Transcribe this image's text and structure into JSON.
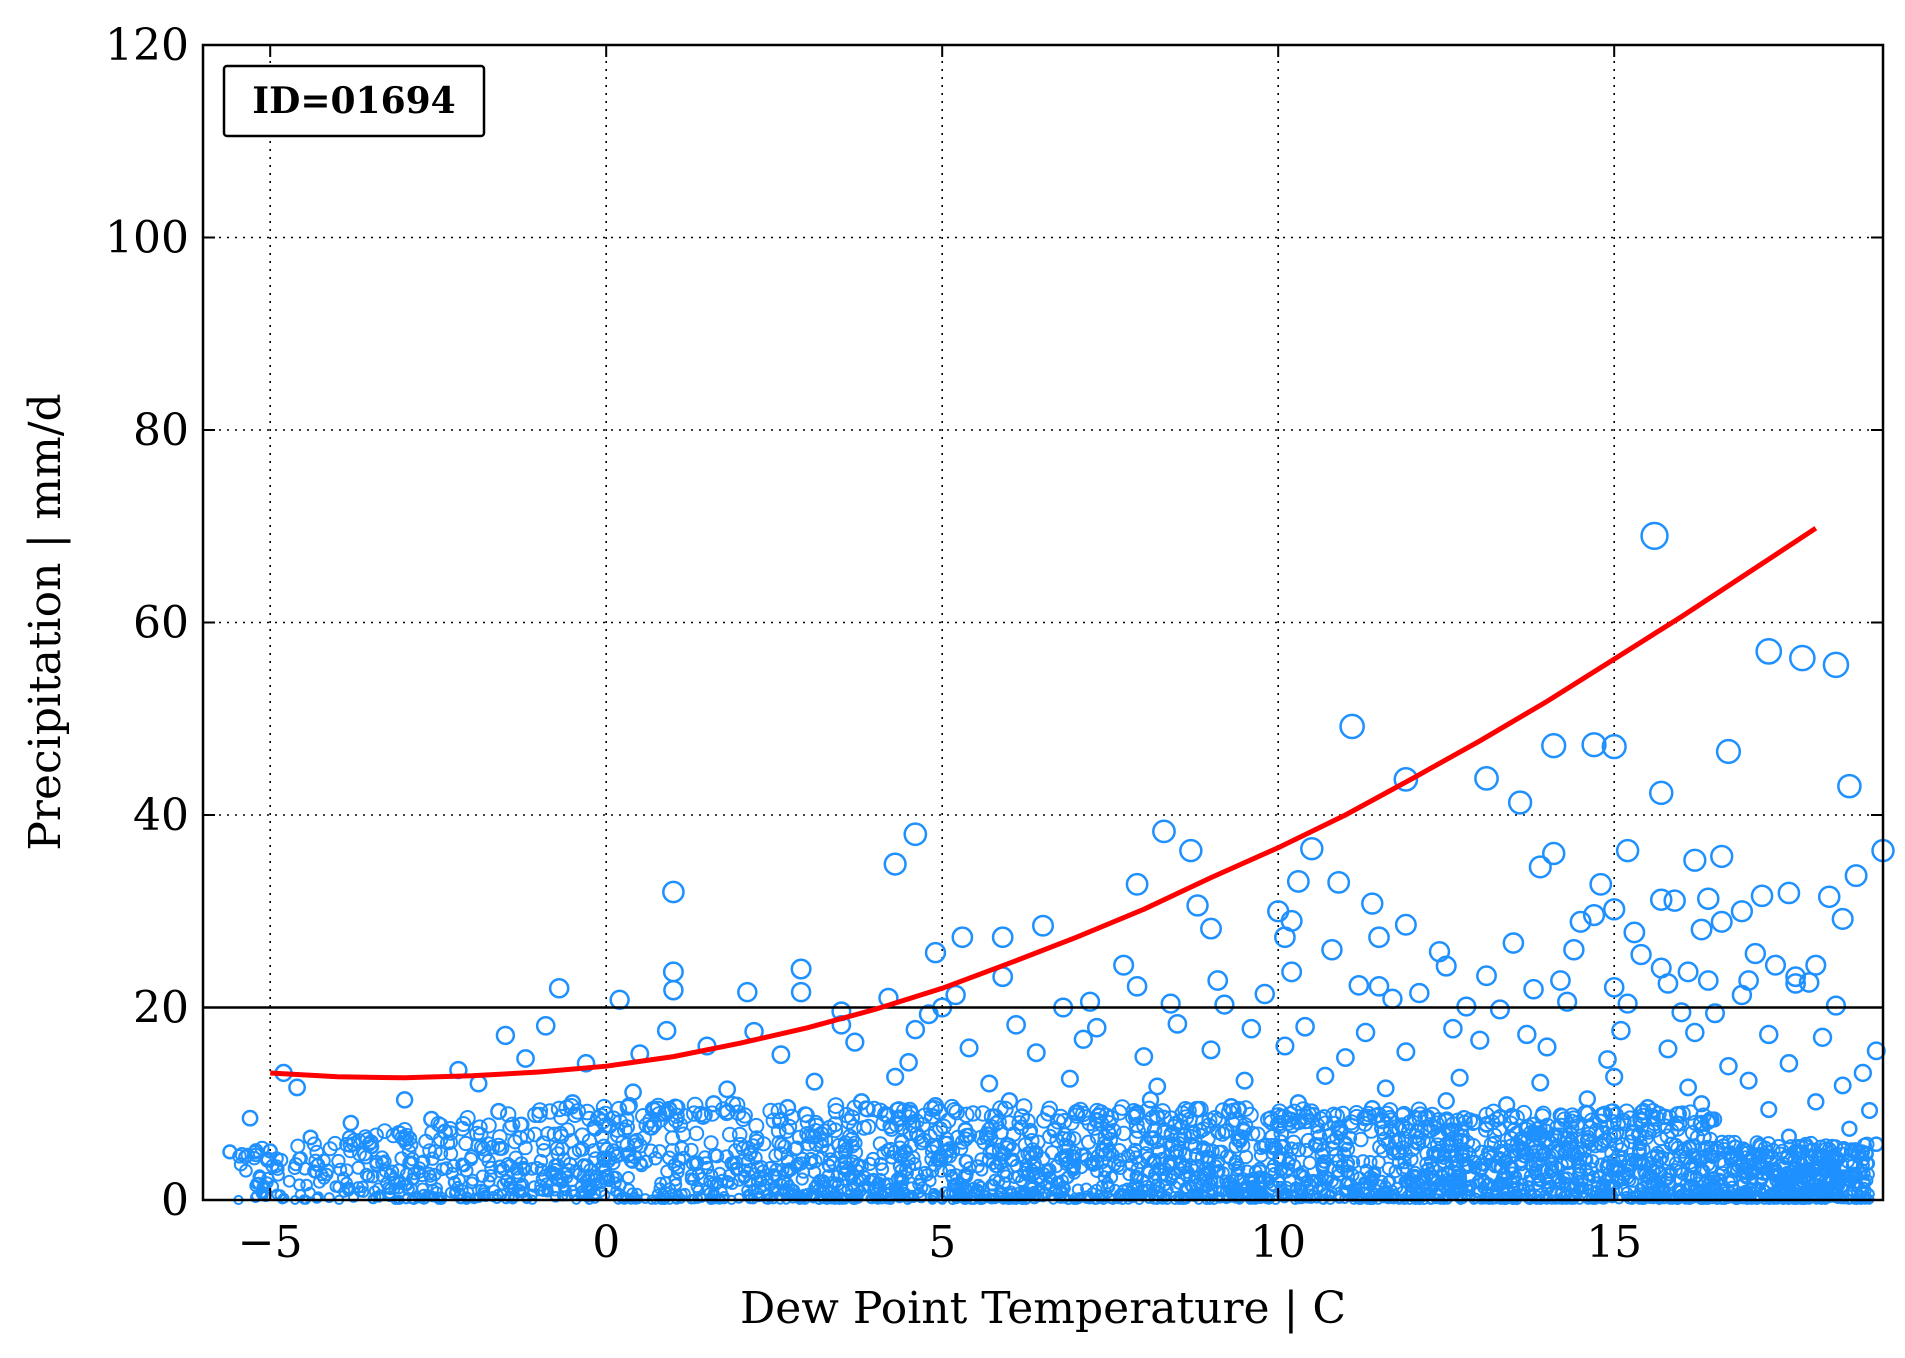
{
  "chart_data": {
    "type": "scatter",
    "annotation": "ID=01694",
    "xlabel": "Dew Point Temperature | C",
    "ylabel": "Precipitation | mm/d",
    "xlim": [
      -6,
      19
    ],
    "ylim": [
      0,
      120
    ],
    "x_ticks": [
      -5,
      0,
      5,
      10,
      15
    ],
    "x_tick_labels": [
      "−5",
      "0",
      "5",
      "10",
      "15"
    ],
    "y_ticks": [
      0,
      20,
      40,
      60,
      80,
      100,
      120
    ],
    "y_tick_labels": [
      "0",
      "20",
      "40",
      "60",
      "80",
      "100",
      "120"
    ],
    "grid": true,
    "reference_line_y": 20,
    "colors": {
      "points": "#1E90FF",
      "fit": "#FF0000",
      "reference": "#000000"
    },
    "fit_curve": {
      "x": [
        -5,
        -4,
        -3,
        -2,
        -1,
        0,
        1,
        2,
        3,
        4,
        5,
        6,
        7,
        8,
        9,
        10,
        11,
        12,
        13,
        14,
        15,
        16,
        17,
        18
      ],
      "y": [
        13.2,
        12.8,
        12.7,
        12.9,
        13.3,
        13.9,
        14.9,
        16.3,
        17.9,
        19.8,
        22.0,
        24.6,
        27.3,
        30.2,
        33.5,
        36.6,
        40.0,
        43.8,
        47.7,
        51.8,
        56.2,
        60.6,
        65.2,
        69.8
      ]
    },
    "points": [
      [
        15.6,
        69
      ],
      [
        17.3,
        57.0
      ],
      [
        17.8,
        56.3
      ],
      [
        18.3,
        55.6
      ],
      [
        11.1,
        49.2
      ],
      [
        14.1,
        47.2
      ],
      [
        14.7,
        47.3
      ],
      [
        15.0,
        47.1
      ],
      [
        16.7,
        46.6
      ],
      [
        18.5,
        43.0
      ],
      [
        11.9,
        43.7
      ],
      [
        13.1,
        43.8
      ],
      [
        13.6,
        41.3
      ],
      [
        15.7,
        42.3
      ],
      [
        4.6,
        38.0
      ],
      [
        4.3,
        34.9
      ],
      [
        8.3,
        38.3
      ],
      [
        8.7,
        36.3
      ],
      [
        10.5,
        36.5
      ],
      [
        14.1,
        36.0
      ],
      [
        15.2,
        36.3
      ],
      [
        19.0,
        36.3
      ],
      [
        1.0,
        32.0
      ],
      [
        7.9,
        32.8
      ],
      [
        10.3,
        33.1
      ],
      [
        10.9,
        33.0
      ],
      [
        13.9,
        34.6
      ],
      [
        14.8,
        32.8
      ],
      [
        16.2,
        35.3
      ],
      [
        16.6,
        35.7
      ],
      [
        18.6,
        33.7
      ],
      [
        8.8,
        30.6
      ],
      [
        10.0,
        30.0
      ],
      [
        11.4,
        30.8
      ],
      [
        14.7,
        29.6
      ],
      [
        15.0,
        30.2
      ],
      [
        15.7,
        31.2
      ],
      [
        15.9,
        31.1
      ],
      [
        16.4,
        31.3
      ],
      [
        16.9,
        30.0
      ],
      [
        17.2,
        31.6
      ],
      [
        17.6,
        31.9
      ],
      [
        18.2,
        31.5
      ],
      [
        18.4,
        29.2
      ],
      [
        9.0,
        28.2
      ],
      [
        10.2,
        29.0
      ],
      [
        10.1,
        27.3
      ],
      [
        11.9,
        28.6
      ],
      [
        14.5,
        28.9
      ],
      [
        15.3,
        27.8
      ],
      [
        16.6,
        28.9
      ],
      [
        16.3,
        28.1
      ],
      [
        17.7,
        23.2
      ],
      [
        6.5,
        28.5
      ],
      [
        5.3,
        27.3
      ],
      [
        5.9,
        27.3
      ],
      [
        4.9,
        25.7
      ],
      [
        10.8,
        26.0
      ],
      [
        11.5,
        27.3
      ],
      [
        12.4,
        25.8
      ],
      [
        13.5,
        26.7
      ],
      [
        14.4,
        26.0
      ],
      [
        15.4,
        25.5
      ],
      [
        17.1,
        25.6
      ],
      [
        17.4,
        24.4
      ],
      [
        18.0,
        24.4
      ],
      [
        1.0,
        23.7
      ],
      [
        2.9,
        24.0
      ],
      [
        7.7,
        24.4
      ],
      [
        10.2,
        23.7
      ],
      [
        12.5,
        24.3
      ],
      [
        13.1,
        23.3
      ],
      [
        14.2,
        22.8
      ],
      [
        15.7,
        24.1
      ],
      [
        16.1,
        23.7
      ],
      [
        16.4,
        22.8
      ],
      [
        17.0,
        22.8
      ],
      [
        17.7,
        22.5
      ],
      [
        -0.7,
        22.0
      ],
      [
        1.0,
        21.8
      ],
      [
        2.1,
        21.6
      ],
      [
        2.9,
        21.6
      ],
      [
        4.2,
        21.0
      ],
      [
        5.9,
        23.2
      ],
      [
        7.9,
        22.2
      ],
      [
        9.1,
        22.8
      ],
      [
        11.2,
        22.3
      ],
      [
        11.5,
        22.2
      ],
      [
        12.1,
        21.5
      ],
      [
        13.8,
        21.9
      ],
      [
        15.0,
        22.1
      ],
      [
        15.8,
        22.5
      ],
      [
        16.9,
        21.3
      ],
      [
        17.9,
        22.6
      ],
      [
        0.2,
        20.8
      ],
      [
        5.2,
        21.3
      ],
      [
        5.0,
        20.0
      ],
      [
        6.8,
        20.0
      ],
      [
        7.2,
        20.6
      ],
      [
        8.4,
        20.4
      ],
      [
        9.2,
        20.3
      ],
      [
        9.8,
        21.4
      ],
      [
        11.7,
        20.9
      ],
      [
        12.8,
        20.1
      ],
      [
        13.3,
        19.8
      ],
      [
        14.3,
        20.6
      ],
      [
        15.2,
        20.4
      ],
      [
        16.0,
        19.5
      ],
      [
        16.5,
        19.4
      ],
      [
        18.3,
        20.2
      ],
      [
        3.5,
        19.6
      ],
      [
        4.8,
        19.3
      ],
      [
        -0.9,
        18.1
      ],
      [
        -1.5,
        17.1
      ],
      [
        0.9,
        17.6
      ],
      [
        2.2,
        17.5
      ],
      [
        3.5,
        18.2
      ],
      [
        4.6,
        17.7
      ],
      [
        6.1,
        18.2
      ],
      [
        7.3,
        17.9
      ],
      [
        8.5,
        18.3
      ],
      [
        9.6,
        17.8
      ],
      [
        10.4,
        18.0
      ],
      [
        11.3,
        17.4
      ],
      [
        12.6,
        17.8
      ],
      [
        13.7,
        17.2
      ],
      [
        15.1,
        17.6
      ],
      [
        16.2,
        17.4
      ],
      [
        17.3,
        17.2
      ],
      [
        18.1,
        16.9
      ],
      [
        -4.8,
        13.2
      ],
      [
        -4.6,
        11.7
      ],
      [
        -2.2,
        13.5
      ],
      [
        -1.9,
        12.1
      ],
      [
        -1.2,
        14.7
      ],
      [
        -0.3,
        14.2
      ],
      [
        0.5,
        15.2
      ],
      [
        1.5,
        16.0
      ],
      [
        2.6,
        15.1
      ],
      [
        3.7,
        16.4
      ],
      [
        4.5,
        14.3
      ],
      [
        5.4,
        15.8
      ],
      [
        6.4,
        15.3
      ],
      [
        7.1,
        16.7
      ],
      [
        8.0,
        14.9
      ],
      [
        9.0,
        15.6
      ],
      [
        10.1,
        16.0
      ],
      [
        11.0,
        14.8
      ],
      [
        11.9,
        15.4
      ],
      [
        13.0,
        16.6
      ],
      [
        14.0,
        15.9
      ],
      [
        14.9,
        14.6
      ],
      [
        15.8,
        15.7
      ],
      [
        16.7,
        13.9
      ],
      [
        17.6,
        14.2
      ],
      [
        18.9,
        15.5
      ],
      [
        -5.3,
        8.5
      ],
      [
        -5.6,
        5.0
      ],
      [
        -3.8,
        8.0
      ],
      [
        -3.0,
        10.4
      ],
      [
        -2.6,
        8.4
      ],
      [
        0.4,
        11.2
      ],
      [
        1.8,
        11.5
      ],
      [
        3.1,
        12.3
      ],
      [
        4.3,
        12.8
      ],
      [
        5.7,
        12.1
      ],
      [
        6.9,
        12.6
      ],
      [
        8.2,
        11.8
      ],
      [
        9.5,
        12.4
      ],
      [
        10.7,
        12.9
      ],
      [
        11.6,
        11.6
      ],
      [
        12.7,
        12.7
      ],
      [
        13.9,
        12.2
      ],
      [
        15.0,
        12.8
      ],
      [
        16.1,
        11.7
      ],
      [
        17.0,
        12.4
      ],
      [
        18.4,
        11.9
      ],
      [
        18.7,
        13.2
      ],
      [
        -5.0,
        5.1
      ],
      [
        -4.4,
        6.5
      ],
      [
        -3.5,
        6.0
      ],
      [
        -2.4,
        7.1
      ],
      [
        -1.6,
        9.2
      ],
      [
        -0.5,
        10.1
      ],
      [
        0.7,
        9.4
      ],
      [
        1.6,
        10.0
      ],
      [
        2.7,
        9.6
      ],
      [
        3.8,
        10.2
      ],
      [
        4.9,
        9.8
      ],
      [
        6.0,
        10.3
      ],
      [
        7.0,
        9.1
      ],
      [
        8.1,
        10.4
      ],
      [
        9.3,
        9.7
      ],
      [
        10.3,
        10.1
      ],
      [
        11.4,
        9.5
      ],
      [
        12.5,
        10.3
      ],
      [
        13.4,
        9.9
      ],
      [
        14.6,
        10.5
      ],
      [
        15.5,
        9.6
      ],
      [
        16.3,
        10.0
      ],
      [
        17.3,
        9.4
      ],
      [
        18.0,
        10.2
      ],
      [
        18.8,
        9.3
      ],
      [
        18.5,
        7.4
      ],
      [
        17.6,
        6.6
      ],
      [
        16.8,
        5.5
      ],
      [
        18.9,
        5.8
      ],
      [
        18.2,
        3.8
      ],
      [
        17.4,
        2.9
      ],
      [
        18.6,
        1.8
      ],
      [
        17.9,
        1.0
      ],
      [
        16.5,
        1.5
      ]
    ]
  }
}
